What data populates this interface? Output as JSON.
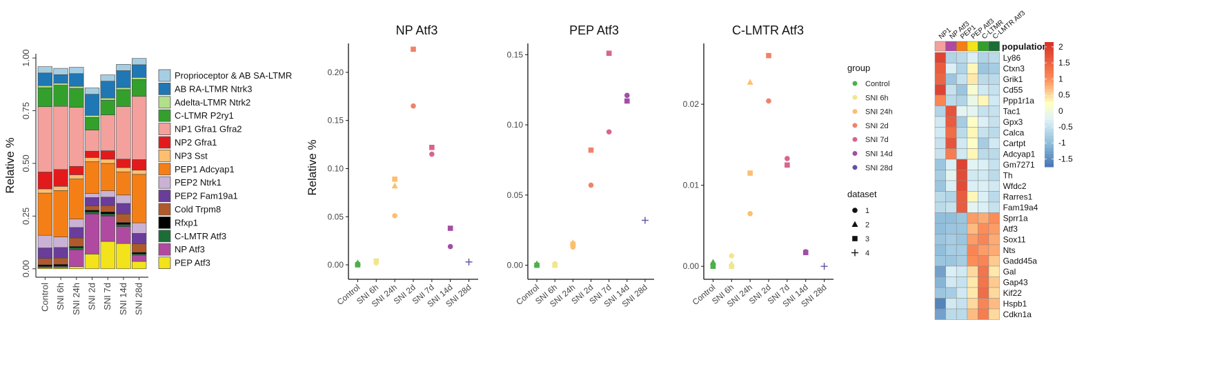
{
  "chart_data": [
    {
      "type": "bar",
      "stacked": true,
      "ylabel": "Relative %",
      "ylim": [
        0,
        1
      ],
      "yticks": [
        "0.00",
        "0.25",
        "0.50",
        "0.75",
        "1.00"
      ],
      "categories": [
        "Control",
        "SNI 6h",
        "SNI 24h",
        "SNI 2d",
        "SNI 7d",
        "SNI 14d",
        "SNI 28d"
      ],
      "legend_position": "right",
      "series": [
        {
          "name": "PEP Atf3",
          "color": "#f2e31b",
          "values": [
            0.005,
            0.005,
            0.01,
            0.07,
            0.13,
            0.12,
            0.035
          ]
        },
        {
          "name": "NP Atf3",
          "color": "#b04aa0",
          "values": [
            0.003,
            0.005,
            0.08,
            0.19,
            0.12,
            0.08,
            0.03
          ]
        },
        {
          "name": "C-LMTR Atf3",
          "color": "#1b6e36",
          "values": [
            0.003,
            0.003,
            0.01,
            0.01,
            0.01,
            0.01,
            0.005
          ]
        },
        {
          "name": "Rfxp1",
          "color": "#000000",
          "values": [
            0.008,
            0.008,
            0.006,
            0.008,
            0.01,
            0.01,
            0.008
          ]
        },
        {
          "name": "Cold Trpm8",
          "color": "#b0592c",
          "values": [
            0.03,
            0.03,
            0.04,
            0.02,
            0.03,
            0.04,
            0.04
          ]
        },
        {
          "name": "PEP2 Fam19a1",
          "color": "#6a3d9a",
          "values": [
            0.05,
            0.05,
            0.05,
            0.04,
            0.04,
            0.05,
            0.05
          ]
        },
        {
          "name": "PEP2 Ntrk1",
          "color": "#cab2d6",
          "values": [
            0.06,
            0.05,
            0.04,
            0.02,
            0.03,
            0.04,
            0.05
          ]
        },
        {
          "name": "PEP1 Adcyap1",
          "color": "#f57f17",
          "values": [
            0.2,
            0.22,
            0.19,
            0.15,
            0.13,
            0.11,
            0.23
          ]
        },
        {
          "name": "NP3 Sst",
          "color": "#fdbf6f",
          "values": [
            0.02,
            0.02,
            0.02,
            0.02,
            0.02,
            0.02,
            0.02
          ]
        },
        {
          "name": "NP2 Gfra1",
          "color": "#e31a1c",
          "values": [
            0.08,
            0.08,
            0.04,
            0.03,
            0.04,
            0.04,
            0.05
          ]
        },
        {
          "name": "NP1 Gfra1 Gfra2",
          "color": "#f4a09c",
          "values": [
            0.31,
            0.3,
            0.28,
            0.1,
            0.17,
            0.25,
            0.3
          ]
        },
        {
          "name": "C-LTMR P2ry1",
          "color": "#33a02c",
          "values": [
            0.09,
            0.1,
            0.09,
            0.06,
            0.07,
            0.08,
            0.08
          ]
        },
        {
          "name": "Adelta-LTMR Ntrk2",
          "color": "#b2df8a",
          "values": [
            0.01,
            0.01,
            0.01,
            0.01,
            0.01,
            0.01,
            0.01
          ]
        },
        {
          "name": "AB RA-LTMR Ntrk3",
          "color": "#1f78b4",
          "values": [
            0.06,
            0.04,
            0.06,
            0.1,
            0.08,
            0.08,
            0.06
          ]
        },
        {
          "name": "Proprioceptor & AB SA-LTMR",
          "color": "#a6cee3",
          "values": [
            0.03,
            0.03,
            0.03,
            0.03,
            0.03,
            0.03,
            0.03
          ]
        }
      ]
    },
    {
      "type": "scatter",
      "title": "NP Atf3",
      "ylabel": "Relative %",
      "ylim": [
        -0.015,
        0.23
      ],
      "yticks": [
        "0.00",
        "0.05",
        "0.10",
        "0.15",
        "0.20"
      ],
      "categories": [
        "Control",
        "SNI 6h",
        "SNI 24h",
        "SNI 2d",
        "SNI 7d",
        "SNI 14d",
        "SNI 28d"
      ],
      "points": [
        {
          "group": "Control",
          "dataset": 1,
          "y": 0.001
        },
        {
          "group": "Control",
          "dataset": 2,
          "y": 0.002
        },
        {
          "group": "Control",
          "dataset": 3,
          "y": 0.0
        },
        {
          "group": "SNI 6h",
          "dataset": 1,
          "y": 0.002
        },
        {
          "group": "SNI 6h",
          "dataset": 3,
          "y": 0.004
        },
        {
          "group": "SNI 24h",
          "dataset": 1,
          "y": 0.051
        },
        {
          "group": "SNI 24h",
          "dataset": 2,
          "y": 0.082
        },
        {
          "group": "SNI 24h",
          "dataset": 3,
          "y": 0.089
        },
        {
          "group": "SNI 2d",
          "dataset": 1,
          "y": 0.165
        },
        {
          "group": "SNI 2d",
          "dataset": 3,
          "y": 0.224
        },
        {
          "group": "SNI 7d",
          "dataset": 1,
          "y": 0.115
        },
        {
          "group": "SNI 7d",
          "dataset": 3,
          "y": 0.122
        },
        {
          "group": "SNI 14d",
          "dataset": 1,
          "y": 0.019
        },
        {
          "group": "SNI 14d",
          "dataset": 3,
          "y": 0.038
        },
        {
          "group": "SNI 28d",
          "dataset": 4,
          "y": 0.003
        }
      ]
    },
    {
      "type": "scatter",
      "title": "PEP Atf3",
      "ylim": [
        -0.01,
        0.158
      ],
      "yticks": [
        "0.00",
        "0.05",
        "0.10",
        "0.15"
      ],
      "categories": [
        "Control",
        "SNI 6h",
        "SNI 24h",
        "SNI 2d",
        "SNI 7d",
        "SNI 14d",
        "SNI 28d"
      ],
      "points": [
        {
          "group": "Control",
          "dataset": 1,
          "y": 0.0
        },
        {
          "group": "Control",
          "dataset": 2,
          "y": 0.001
        },
        {
          "group": "Control",
          "dataset": 3,
          "y": 0.0
        },
        {
          "group": "SNI 6h",
          "dataset": 1,
          "y": 0.001
        },
        {
          "group": "SNI 6h",
          "dataset": 3,
          "y": 0.0
        },
        {
          "group": "SNI 24h",
          "dataset": 1,
          "y": 0.013
        },
        {
          "group": "SNI 24h",
          "dataset": 2,
          "y": 0.016
        },
        {
          "group": "SNI 24h",
          "dataset": 3,
          "y": 0.015
        },
        {
          "group": "SNI 2d",
          "dataset": 1,
          "y": 0.057
        },
        {
          "group": "SNI 2d",
          "dataset": 3,
          "y": 0.082
        },
        {
          "group": "SNI 7d",
          "dataset": 1,
          "y": 0.095
        },
        {
          "group": "SNI 7d",
          "dataset": 3,
          "y": 0.151
        },
        {
          "group": "SNI 14d",
          "dataset": 1,
          "y": 0.121
        },
        {
          "group": "SNI 14d",
          "dataset": 3,
          "y": 0.117
        },
        {
          "group": "SNI 28d",
          "dataset": 4,
          "y": 0.032
        }
      ]
    },
    {
      "type": "scatter",
      "title": "C-LMTR Atf3",
      "ylim": [
        -0.0016,
        0.0275
      ],
      "yticks": [
        "0.00",
        "0.01",
        "0.02"
      ],
      "categories": [
        "Control",
        "SNI 6h",
        "SNI 24h",
        "SNI 2d",
        "SNI 7d",
        "SNI 14d",
        "SNI 28d"
      ],
      "points": [
        {
          "group": "Control",
          "dataset": 1,
          "y": 0.0003
        },
        {
          "group": "Control",
          "dataset": 2,
          "y": 0.0005
        },
        {
          "group": "Control",
          "dataset": 3,
          "y": 0.0
        },
        {
          "group": "SNI 6h",
          "dataset": 1,
          "y": 0.0013
        },
        {
          "group": "SNI 6h",
          "dataset": 2,
          "y": 0.0003
        },
        {
          "group": "SNI 6h",
          "dataset": 3,
          "y": 0.0
        },
        {
          "group": "SNI 24h",
          "dataset": 1,
          "y": 0.0065
        },
        {
          "group": "SNI 24h",
          "dataset": 2,
          "y": 0.0227
        },
        {
          "group": "SNI 24h",
          "dataset": 3,
          "y": 0.0115
        },
        {
          "group": "SNI 2d",
          "dataset": 1,
          "y": 0.0204
        },
        {
          "group": "SNI 2d",
          "dataset": 3,
          "y": 0.026
        },
        {
          "group": "SNI 7d",
          "dataset": 1,
          "y": 0.0133
        },
        {
          "group": "SNI 7d",
          "dataset": 3,
          "y": 0.0125
        },
        {
          "group": "SNI 14d",
          "dataset": 1,
          "y": 0.0018
        },
        {
          "group": "SNI 14d",
          "dataset": 3,
          "y": 0.0017
        },
        {
          "group": "SNI 28d",
          "dataset": 4,
          "y": 0.0
        }
      ]
    },
    {
      "type": "heatmap",
      "legend_title": "population",
      "columns": [
        "NP1",
        "NP Atf3",
        "PEP1",
        "PEP Atf3",
        "C-LTMR",
        "C-LMTR Atf3"
      ],
      "column_colors": [
        "#f4a09c",
        "#b04aa0",
        "#f57f17",
        "#f2e31b",
        "#33a02c",
        "#1b6e36"
      ],
      "rows": [
        "Ly86",
        "Ctxn3",
        "Grik1",
        "Cd55",
        "Ppp1r1a",
        "Tac1",
        "Gpx3",
        "Calca",
        "Cartpt",
        "Adcyap1",
        "Gm7271",
        "Th",
        "Wfdc2",
        "Rarres1",
        "Fam19a4",
        "Sprr1a",
        "Atf3",
        "Sox11",
        "Nts",
        "Gadd45a",
        "Gal",
        "Gap43",
        "Kif22",
        "Hspb1",
        "Cdkn1a"
      ],
      "values": [
        [
          1.9,
          -0.7,
          -0.6,
          -0.3,
          -0.7,
          -0.6
        ],
        [
          1.6,
          -0.3,
          -0.7,
          0.3,
          -0.9,
          -0.8
        ],
        [
          1.5,
          -0.9,
          -0.5,
          0.4,
          -0.6,
          -0.6
        ],
        [
          1.9,
          -0.5,
          -0.9,
          0.1,
          -0.4,
          -0.5
        ],
        [
          1.1,
          -0.6,
          -0.7,
          -0.1,
          0.3,
          -0.4
        ],
        [
          -0.7,
          1.7,
          -0.2,
          -0.2,
          -0.5,
          -0.5
        ],
        [
          -0.4,
          1.6,
          -0.8,
          0.2,
          -0.3,
          -0.5
        ],
        [
          -0.4,
          1.4,
          -0.6,
          0.3,
          -0.5,
          -0.6
        ],
        [
          -0.5,
          1.7,
          -0.4,
          0.2,
          -0.8,
          -0.4
        ],
        [
          -0.5,
          1.2,
          -0.4,
          0.3,
          -0.6,
          -0.6
        ],
        [
          -0.9,
          -0.3,
          1.9,
          -0.2,
          -0.3,
          -0.5
        ],
        [
          -0.8,
          -0.2,
          1.8,
          -0.4,
          -0.4,
          -0.6
        ],
        [
          -0.9,
          -0.3,
          1.8,
          -0.3,
          -0.3,
          -0.4
        ],
        [
          -0.6,
          -0.7,
          1.6,
          0.3,
          -0.3,
          -0.6
        ],
        [
          -0.6,
          -0.5,
          1.6,
          -0.2,
          -0.3,
          -0.5
        ],
        [
          -1.0,
          -1.0,
          -0.9,
          0.9,
          0.8,
          1.0
        ],
        [
          -1.0,
          -0.9,
          -0.9,
          0.7,
          1.0,
          0.9
        ],
        [
          -0.9,
          -0.8,
          -0.9,
          0.9,
          1.1,
          0.8
        ],
        [
          -1.0,
          -0.8,
          -0.8,
          1.1,
          0.9,
          0.8
        ],
        [
          -0.9,
          -0.9,
          -0.8,
          1.0,
          1.1,
          0.6
        ],
        [
          -1.3,
          -0.3,
          -0.4,
          0.5,
          1.3,
          0.4
        ],
        [
          -1.1,
          -0.4,
          -0.5,
          0.4,
          1.3,
          0.6
        ],
        [
          -0.9,
          -0.8,
          -0.4,
          0.4,
          1.4,
          0.5
        ],
        [
          -1.6,
          -0.4,
          -0.5,
          0.5,
          1.1,
          0.7
        ],
        [
          -1.3,
          -0.6,
          -0.6,
          0.7,
          1.2,
          0.5
        ]
      ],
      "scale_ticks": [
        "2",
        "1.5",
        "1",
        "0.5",
        "0",
        "-0.5",
        "-1",
        "-1.5"
      ],
      "scale_values": [
        2,
        1.5,
        1,
        0.5,
        0,
        -0.5,
        -1,
        -1.5
      ],
      "scale_range": [
        -1.75,
        2.15
      ]
    }
  ],
  "group_legend": {
    "title": "group",
    "items": [
      {
        "label": "Control",
        "color": "#4daf4a"
      },
      {
        "label": "SNI 6h",
        "color": "#f0e68c"
      },
      {
        "label": "SNI 24h",
        "color": "#fdbf6f"
      },
      {
        "label": "SNI 2d",
        "color": "#f0826a"
      },
      {
        "label": "SNI 7d",
        "color": "#d9648e"
      },
      {
        "label": "SNI 14d",
        "color": "#a24ea6"
      },
      {
        "label": "SNI 28d",
        "color": "#5e50a5"
      }
    ]
  },
  "dataset_legend": {
    "title": "dataset",
    "items": [
      {
        "label": "1",
        "shape": "circle"
      },
      {
        "label": "2",
        "shape": "triangle"
      },
      {
        "label": "3",
        "shape": "square"
      },
      {
        "label": "4",
        "shape": "plus"
      }
    ]
  }
}
